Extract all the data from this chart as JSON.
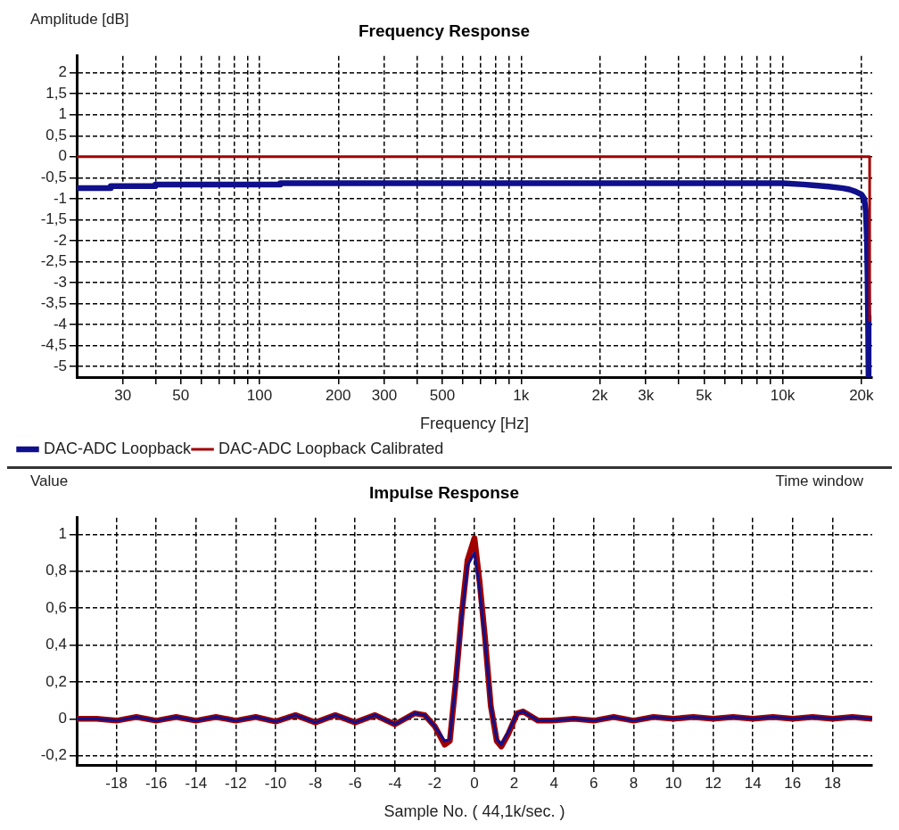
{
  "chart_data": [
    {
      "type": "line",
      "title": "Frequency Response",
      "xlabel": "Frequency [Hz]",
      "ylabel": "Amplitude [dB]",
      "log": "x",
      "grid": true,
      "legend": "bottom left",
      "marker": "none",
      "line_style": "solid",
      "xlim": [
        20,
        22000
      ],
      "xticks": [
        30,
        {
          "value": 40,
          "label": null
        },
        50,
        {
          "value": 60,
          "label": null
        },
        {
          "value": 70,
          "label": null
        },
        {
          "value": 80,
          "label": null
        },
        {
          "value": 90,
          "label": null
        },
        100,
        200,
        300,
        {
          "value": 400,
          "label": null
        },
        500,
        {
          "value": 600,
          "label": null
        },
        {
          "value": 700,
          "label": null
        },
        {
          "value": 800,
          "label": null
        },
        {
          "value": 900,
          "label": null
        },
        {
          "value": 1000,
          "label": "1k"
        },
        {
          "value": 2000,
          "label": "2k"
        },
        {
          "value": 3000,
          "label": "3k"
        },
        {
          "value": 4000,
          "label": null
        },
        {
          "value": 5000,
          "label": "5k"
        },
        {
          "value": 6000,
          "label": null
        },
        {
          "value": 7000,
          "label": null
        },
        {
          "value": 8000,
          "label": null
        },
        {
          "value": 9000,
          "label": null
        },
        {
          "value": 10000,
          "label": "10k"
        },
        {
          "value": 20000,
          "label": "20k"
        }
      ],
      "ylim": [
        -5.25,
        2.4
      ],
      "yticks": [
        2,
        {
          "value": 1.5,
          "label": "1,5"
        },
        1,
        {
          "value": 0.5,
          "label": "0,5"
        },
        0,
        {
          "value": -0.5,
          "label": "-0,5"
        },
        -1,
        {
          "value": -1.5,
          "label": "-1,5"
        },
        -2,
        {
          "value": -2.5,
          "label": "-2,5"
        },
        -3,
        {
          "value": -3.5,
          "label": "-3,5"
        },
        -4,
        {
          "value": -4.5,
          "label": "-4,5"
        },
        -5
      ],
      "series": [
        {
          "name": "DAC-ADC Loopback",
          "color": "#10108c",
          "x": [
            20,
            27,
            27,
            40,
            40,
            120,
            120,
            10000,
            12000,
            13000,
            15000,
            17000,
            18000,
            19000,
            20000,
            20500,
            20800,
            21000,
            21100,
            21200,
            21300
          ],
          "values": [
            -0.75,
            -0.75,
            -0.7,
            -0.7,
            -0.66,
            -0.66,
            -0.63,
            -0.63,
            -0.66,
            -0.68,
            -0.71,
            -0.75,
            -0.78,
            -0.83,
            -0.9,
            -1.0,
            -1.3,
            -2.0,
            -2.8,
            -3.8,
            -5.25
          ]
        },
        {
          "name": "DAC-ADC Loopback Calibrated",
          "color": "#a00000",
          "x": [
            20,
            21500,
            21500
          ],
          "values": [
            0,
            0,
            -3.9
          ]
        }
      ]
    },
    {
      "type": "line",
      "title": "Impulse Response",
      "xlabel": "Sample No. ( 44,1k/sec. )",
      "ylabel": "Value",
      "grid": true,
      "legend": false,
      "marker": "none",
      "line_style": "solid",
      "annotations": [
        "Time window"
      ],
      "xlim": [
        -20,
        20
      ],
      "xticks": [
        -18,
        -16,
        -14,
        -12,
        -10,
        -8,
        -6,
        -4,
        -2,
        0,
        2,
        4,
        6,
        8,
        10,
        12,
        14,
        16,
        18
      ],
      "ylim": [
        -0.25,
        1.09
      ],
      "yticks": [
        1,
        {
          "value": 0.8,
          "label": "0,8"
        },
        {
          "value": 0.6,
          "label": "0,6"
        },
        {
          "value": 0.4,
          "label": "0,4"
        },
        {
          "value": 0.2,
          "label": "0,2"
        },
        0,
        {
          "value": -0.2,
          "label": "-0,2"
        }
      ],
      "series": [
        {
          "color": "#a00000",
          "x": [
            -20,
            -19,
            -18,
            -17,
            -16,
            -15,
            -14,
            -13,
            -12,
            -11,
            -10,
            -9,
            -8,
            -7,
            -6,
            -5,
            -4,
            -3,
            -2.5,
            -2,
            -1.5,
            -1.24,
            -0.94,
            -0.65,
            -0.35,
            0,
            0.25,
            0.53,
            0.82,
            1.12,
            1.35,
            1.71,
            2.15,
            2.44,
            3.2,
            3.9,
            5,
            6,
            7,
            8,
            9,
            10,
            11,
            12,
            13,
            14,
            15,
            16,
            17,
            18,
            19,
            20
          ],
          "values": [
            0,
            0,
            -0.01,
            0.01,
            -0.01,
            0.01,
            -0.01,
            0.01,
            -0.01,
            0.01,
            -0.015,
            0.02,
            -0.02,
            0.02,
            -0.02,
            0.02,
            -0.03,
            0.03,
            0.02,
            -0.04,
            -0.14,
            -0.12,
            0.2,
            0.56,
            0.86,
            0.98,
            0.75,
            0.44,
            0.07,
            -0.12,
            -0.15,
            -0.08,
            0.03,
            0.04,
            -0.01,
            -0.01,
            0,
            -0.01,
            0.01,
            -0.01,
            0.01,
            0,
            0.01,
            0,
            0.01,
            0,
            0.01,
            0,
            0.01,
            0,
            0.01,
            0
          ]
        },
        {
          "color": "#10108c",
          "x": [
            -20,
            -19,
            -18,
            -17,
            -16,
            -15,
            -14,
            -13,
            -12,
            -11,
            -10,
            -9,
            -8,
            -7,
            -6,
            -5,
            -4,
            -3,
            -2.5,
            -2,
            -1.5,
            -1.24,
            -0.94,
            -0.65,
            -0.35,
            0,
            0.25,
            0.53,
            0.82,
            1.12,
            1.35,
            1.71,
            2.15,
            2.44,
            3.2,
            3.9,
            5,
            6,
            7,
            8,
            9,
            10,
            11,
            12,
            13,
            14,
            15,
            16,
            17,
            18,
            19,
            20
          ],
          "values": [
            0,
            0,
            -0.01,
            0.01,
            -0.01,
            0.01,
            -0.01,
            0.01,
            -0.01,
            0.01,
            -0.015,
            0.02,
            -0.02,
            0.02,
            -0.02,
            0.02,
            -0.03,
            0.03,
            0.02,
            -0.04,
            -0.12,
            -0.11,
            0.2,
            0.55,
            0.83,
            0.9,
            0.71,
            0.42,
            0.07,
            -0.11,
            -0.14,
            -0.07,
            0.03,
            0.04,
            -0.01,
            -0.01,
            0,
            -0.01,
            0.01,
            -0.01,
            0.01,
            0,
            0.01,
            0,
            0.01,
            0,
            0.01,
            0,
            0.01,
            0,
            0.01,
            0
          ]
        }
      ]
    }
  ]
}
